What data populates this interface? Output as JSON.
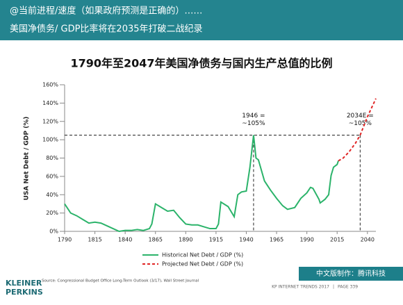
{
  "header": {
    "line1": "@当前进程/速度（如果政府预测是正确的）……",
    "line2": "美国净债务/ GDP比率将在2035年打破二战纪录"
  },
  "chart_data": {
    "type": "line",
    "title": "1790年至2047年美国净债务与国内生产总值的比例",
    "y_label": "USA Net Debt / GDP (%)",
    "xlim": [
      1790,
      2047
    ],
    "xticks": [
      1790,
      1815,
      1840,
      1865,
      1890,
      1915,
      1940,
      1965,
      1990,
      2015,
      2040
    ],
    "ylim": [
      0,
      160
    ],
    "yticks": [
      {
        "value": 0,
        "label": "0%"
      },
      {
        "value": 20,
        "label": "20%"
      },
      {
        "value": 40,
        "label": "40%"
      },
      {
        "value": 60,
        "label": "60%"
      },
      {
        "value": 80,
        "label": "80%"
      },
      {
        "value": 100,
        "label": "100%"
      },
      {
        "value": 120,
        "label": "120%"
      },
      {
        "value": 140,
        "label": "140%"
      },
      {
        "value": 160,
        "label": "160%"
      }
    ],
    "series": [
      {
        "name": "Historical Net Debt / GDP (%)",
        "color": "#2bb36a",
        "dashed": false,
        "x": [
          1790,
          1795,
          1800,
          1805,
          1810,
          1815,
          1820,
          1825,
          1830,
          1835,
          1840,
          1845,
          1850,
          1855,
          1860,
          1862,
          1865,
          1870,
          1875,
          1880,
          1885,
          1890,
          1895,
          1900,
          1905,
          1910,
          1915,
          1917,
          1919,
          1925,
          1930,
          1933,
          1936,
          1940,
          1943,
          1946,
          1948,
          1950,
          1955,
          1960,
          1965,
          1970,
          1974,
          1980,
          1985,
          1990,
          1993,
          1995,
          2000,
          2001,
          2005,
          2008,
          2010,
          2012,
          2015,
          2016
        ],
        "values": [
          30,
          20,
          17,
          13,
          9,
          10,
          9,
          6,
          3,
          0,
          1,
          1,
          2,
          1,
          3,
          8,
          30,
          26,
          22,
          23,
          15,
          8,
          7,
          7,
          5,
          3,
          3,
          8,
          32,
          27,
          16,
          40,
          43,
          44,
          70,
          105,
          80,
          78,
          55,
          45,
          36,
          28,
          24,
          26,
          36,
          42,
          48,
          47,
          35,
          31,
          35,
          40,
          61,
          70,
          73,
          77
        ]
      },
      {
        "name": "Projected Net Debt / GDP (%)",
        "color": "#e02424",
        "dashed": true,
        "x": [
          2016,
          2020,
          2025,
          2030,
          2034,
          2040,
          2047
        ],
        "values": [
          77,
          80,
          87,
          96,
          105,
          125,
          145
        ]
      }
    ],
    "annotations": [
      {
        "x": 1946,
        "y": 105,
        "lines": [
          "1946 =",
          "~105%"
        ]
      },
      {
        "x": 2034,
        "y": 105,
        "lines": [
          "2034E =",
          "~105%"
        ]
      }
    ],
    "source": "Source: Congressional Budget Office Long-Term Outlook (3/17), Wall Street Journal"
  },
  "footer": {
    "logo1": "KLEINER",
    "logo2": "PERKINS",
    "credit": "中文版制作：腾讯科技",
    "trends": "KP INTERNET TRENDS 2017",
    "sep": "|",
    "page": "PAGE 339"
  }
}
